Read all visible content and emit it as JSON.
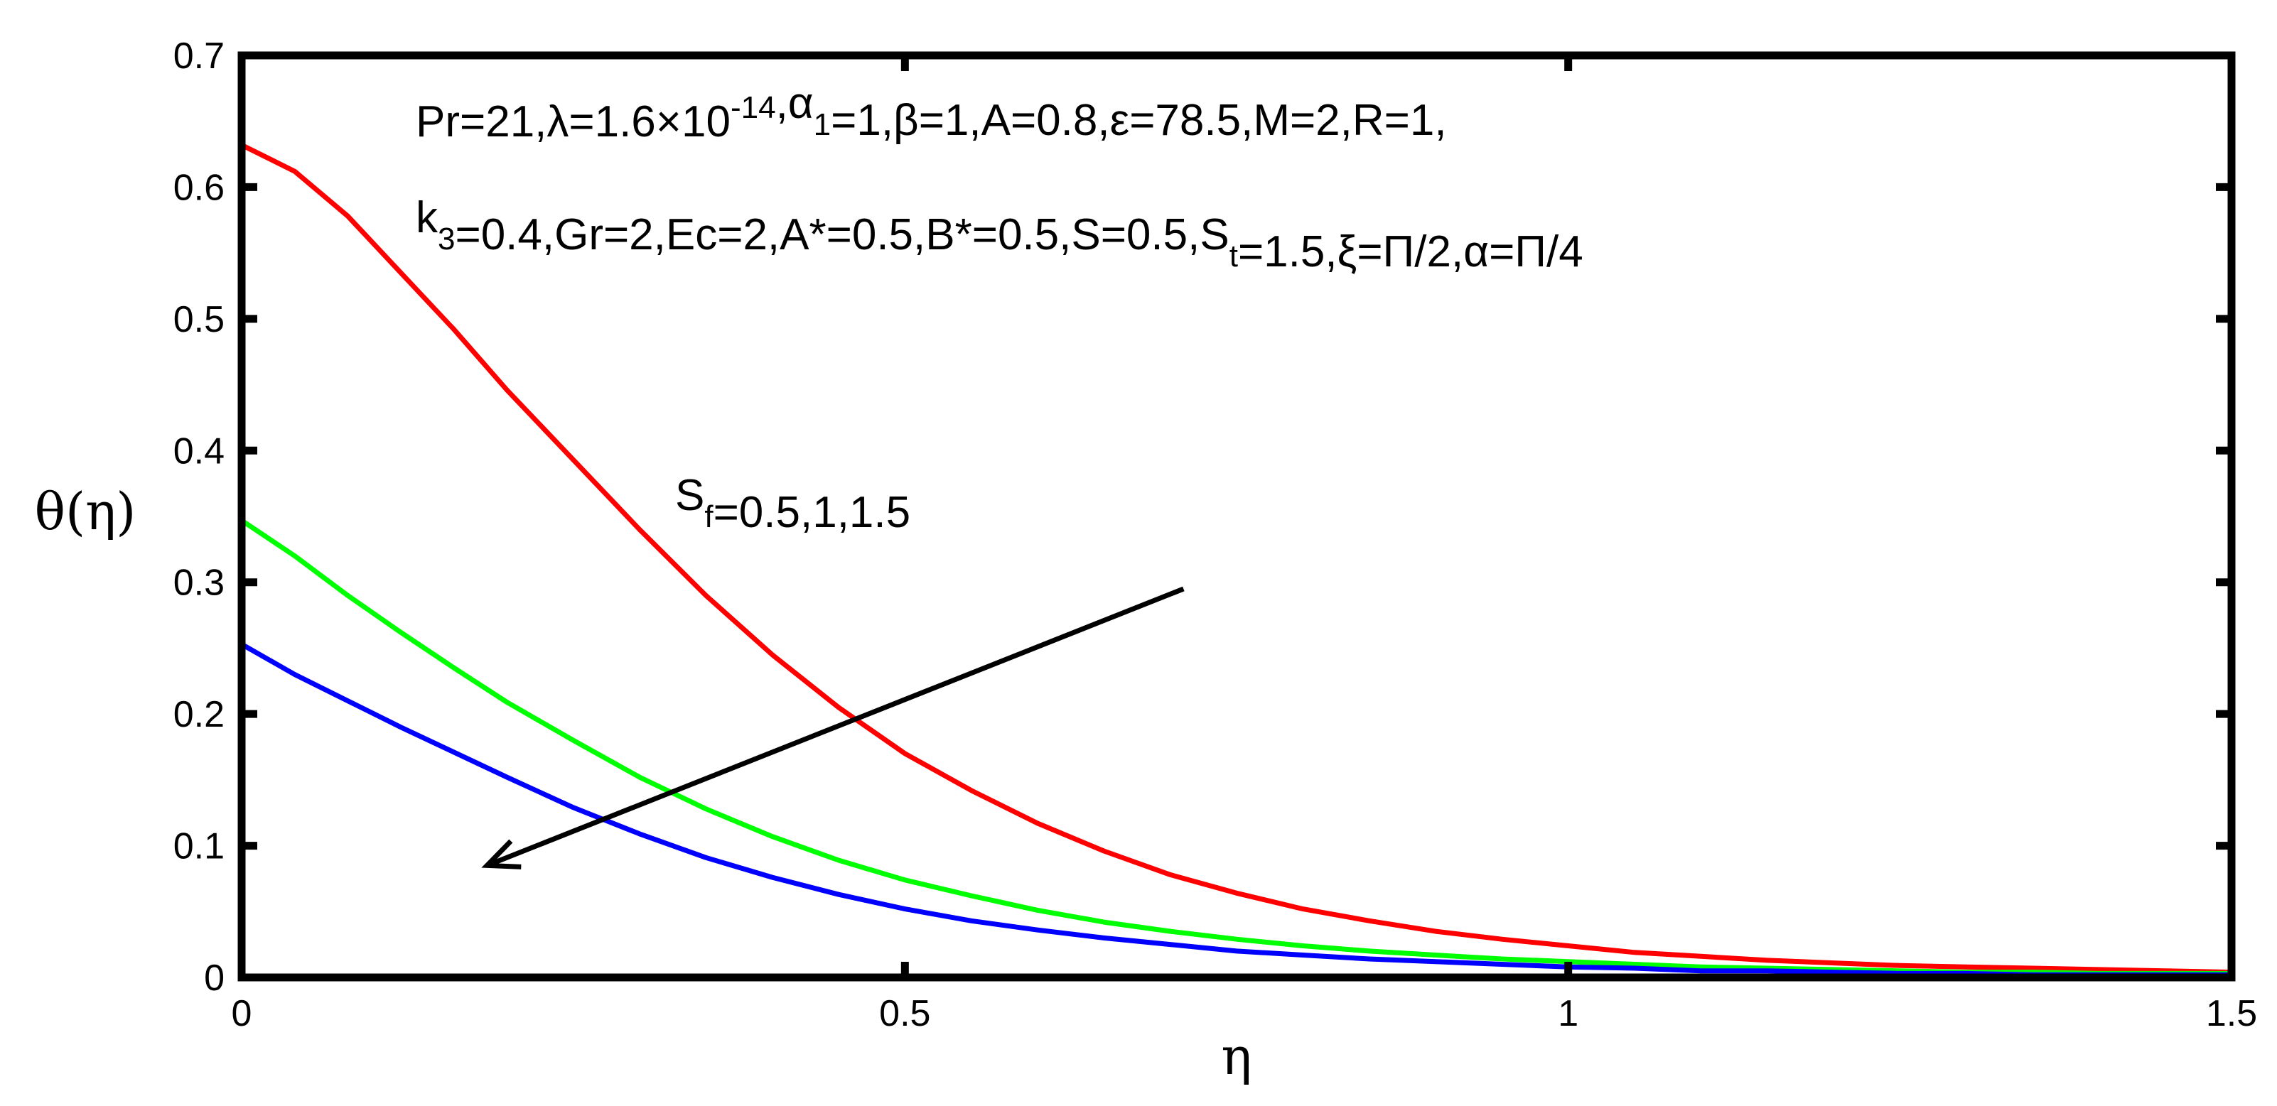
{
  "chart_data": {
    "type": "line",
    "xlabel": "η",
    "ylabel": "θ(η)",
    "xlim": [
      0,
      1.5
    ],
    "ylim": [
      0,
      0.7
    ],
    "x_ticks": [
      0,
      0.5,
      1,
      1.5
    ],
    "x_tick_labels": [
      "0",
      "0.5",
      "1",
      "1.5"
    ],
    "y_ticks": [
      0,
      0.1,
      0.2,
      0.3,
      0.4,
      0.5,
      0.6,
      0.7
    ],
    "y_tick_labels": [
      "0",
      "0.1",
      "0.2",
      "0.3",
      "0.4",
      "0.5",
      "0.6",
      "0.7"
    ],
    "grid": false,
    "x": [
      0,
      0.04,
      0.08,
      0.12,
      0.16,
      0.2,
      0.25,
      0.3,
      0.35,
      0.4,
      0.45,
      0.5,
      0.55,
      0.6,
      0.65,
      0.7,
      0.75,
      0.8,
      0.85,
      0.9,
      0.95,
      1.0,
      1.05,
      1.1,
      1.15,
      1.2,
      1.25,
      1.3,
      1.35,
      1.4,
      1.45,
      1.5
    ],
    "series": [
      {
        "color": "#ff0000",
        "values": [
          0.632,
          0.612,
          0.578,
          0.535,
          0.492,
          0.446,
          0.393,
          0.34,
          0.29,
          0.245,
          0.205,
          0.17,
          0.142,
          0.117,
          0.096,
          0.078,
          0.064,
          0.052,
          0.043,
          0.035,
          0.029,
          0.024,
          0.019,
          0.016,
          0.013,
          0.011,
          0.009,
          0.008,
          0.007,
          0.006,
          0.005,
          0.004
        ]
      },
      {
        "color": "#00ff00",
        "values": [
          0.347,
          0.32,
          0.29,
          0.262,
          0.235,
          0.209,
          0.18,
          0.152,
          0.128,
          0.107,
          0.089,
          0.074,
          0.062,
          0.051,
          0.042,
          0.035,
          0.029,
          0.024,
          0.02,
          0.017,
          0.014,
          0.012,
          0.01,
          0.008,
          0.007,
          0.006,
          0.005,
          0.004,
          0.004,
          0.003,
          0.003,
          0.003
        ]
      },
      {
        "color": "#0000ff",
        "values": [
          0.253,
          0.23,
          0.21,
          0.19,
          0.171,
          0.152,
          0.129,
          0.109,
          0.091,
          0.076,
          0.063,
          0.052,
          0.043,
          0.036,
          0.03,
          0.025,
          0.02,
          0.017,
          0.014,
          0.012,
          0.01,
          0.008,
          0.007,
          0.005,
          0.005,
          0.004,
          0.003,
          0.003,
          0.002,
          0.002,
          0.002,
          0.002
        ]
      }
    ],
    "annotation_line1": [
      {
        "text": "Pr=21,λ=1.6×10"
      },
      {
        "text": "-14",
        "sup": true
      },
      {
        "text": ",α"
      },
      {
        "text": "1",
        "sub": true
      },
      {
        "text": "=1,β=1,A=0.8,ε=78.5,M=2,R=1,"
      }
    ],
    "annotation_line2": [
      {
        "text": "k"
      },
      {
        "text": "3",
        "sub": true
      },
      {
        "text": "=0.4,Gr=2,Ec=2,A*=0.5,B*=0.5,S=0.5,S"
      },
      {
        "text": "t",
        "sub": true
      },
      {
        "text": "=1.5,ξ=Π/2,α=Π/4"
      }
    ],
    "arrow_label": [
      {
        "text": "S"
      },
      {
        "text": "f",
        "sub": true
      },
      {
        "text": "=0.5,1,1.5"
      }
    ],
    "arrow_from": [
      0.71,
      0.295
    ],
    "arrow_to": [
      0.185,
      0.085
    ]
  }
}
